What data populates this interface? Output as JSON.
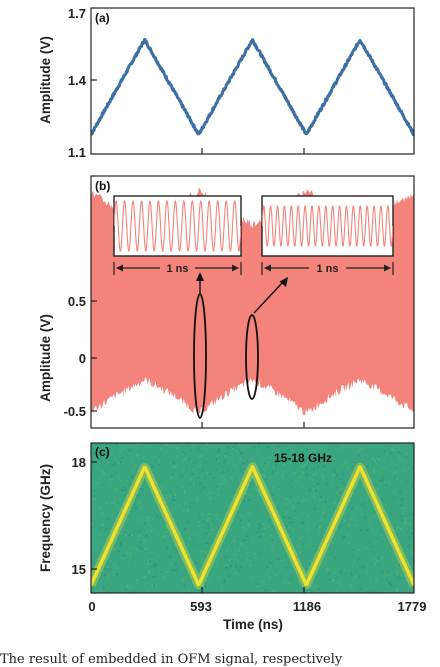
{
  "chart_data": [
    {
      "type": "line",
      "panel_label": "(a)",
      "ylabel": "Amplitude (V)",
      "yticks": [
        "1.1",
        "1.4",
        "1.7"
      ],
      "ylim": [
        1.1,
        1.7
      ],
      "xlim": [
        0,
        1779
      ],
      "x": [
        0,
        296,
        593,
        889,
        1186,
        1482,
        1779
      ],
      "y": [
        1.18,
        1.57,
        1.18,
        1.57,
        1.18,
        1.57,
        1.18
      ],
      "line_color": "#3b6fa6"
    },
    {
      "type": "area",
      "panel_label": "(b)",
      "ylabel": "Amplitude (V)",
      "yticks": [
        "-0.5",
        "0",
        "0.5"
      ],
      "ylim": [
        -0.6,
        0.6
      ],
      "xlim": [
        0,
        1779
      ],
      "envelope_x": [
        0,
        150,
        296,
        450,
        593,
        740,
        889,
        1040,
        1186,
        1330,
        1482,
        1630,
        1779
      ],
      "envelope_y": [
        0.52,
        0.44,
        0.37,
        0.44,
        0.53,
        0.44,
        0.37,
        0.44,
        0.53,
        0.44,
        0.37,
        0.44,
        0.52
      ],
      "fill_color": "#f4837b",
      "insets": [
        {
          "scale_label": "1 ns",
          "cycles": 15
        },
        {
          "scale_label": "1 ns",
          "cycles": 19
        }
      ]
    },
    {
      "type": "heatmap",
      "panel_label": "(c)",
      "ylabel": "Frequency (GHz)",
      "xlabel": "Time (ns)",
      "annotation": "15-18 GHz",
      "yticks": [
        "15",
        "18"
      ],
      "xticks": [
        "0",
        "593",
        "1186",
        "1779"
      ],
      "ylim": [
        14.8,
        18.6
      ],
      "xlim": [
        0,
        1779
      ],
      "x": [
        0,
        296,
        593,
        889,
        1186,
        1482,
        1779
      ],
      "y": [
        15.0,
        18.0,
        15.0,
        18.0,
        15.0,
        18.0,
        15.0
      ],
      "colors": {
        "background": "#3aa67f",
        "trace": "#f2e12a"
      }
    }
  ],
  "caption": "The result of embedded in OFM signal, respectively"
}
